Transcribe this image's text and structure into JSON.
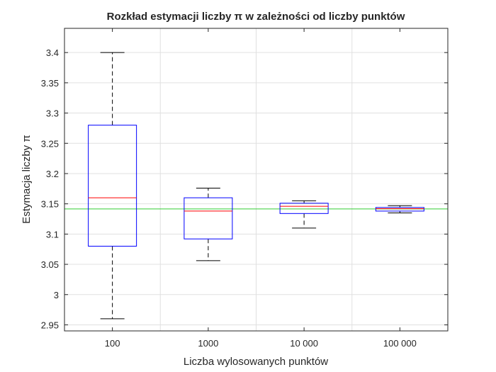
{
  "chart_data": {
    "type": "box",
    "title": "Rozkład estymacji liczby π w zależności od liczby punktów",
    "xlabel": "Liczba wylosowanych punktów",
    "ylabel": "Estymacja liczby π",
    "categories": [
      "100",
      "1000",
      "10 000",
      "100 000"
    ],
    "ylim": [
      2.94,
      3.44
    ],
    "yticks": [
      2.95,
      3.0,
      3.05,
      3.1,
      3.15,
      3.2,
      3.25,
      3.3,
      3.35,
      3.4
    ],
    "ytick_labels": [
      "2.95",
      "3",
      "3.05",
      "3.1",
      "3.15",
      "3.2",
      "3.25",
      "3.3",
      "3.35",
      "3.4"
    ],
    "grid": true,
    "reference_line": 3.1416,
    "boxes": [
      {
        "category": "100",
        "min": 2.96,
        "q1": 3.08,
        "median": 3.16,
        "q3": 3.28,
        "max": 3.4
      },
      {
        "category": "1000",
        "min": 3.056,
        "q1": 3.092,
        "median": 3.138,
        "q3": 3.16,
        "max": 3.176
      },
      {
        "category": "10 000",
        "min": 3.11,
        "q1": 3.134,
        "median": 3.146,
        "q3": 3.151,
        "max": 3.155
      },
      {
        "category": "100 000",
        "min": 3.135,
        "q1": 3.138,
        "median": 3.142,
        "q3": 3.144,
        "max": 3.147
      }
    ],
    "colors": {
      "box": "#0000ff",
      "median": "#ff0000",
      "whisker": "#000000",
      "reference": "#33cc33",
      "grid": "#e0e0e0",
      "axis": "#262626"
    }
  }
}
